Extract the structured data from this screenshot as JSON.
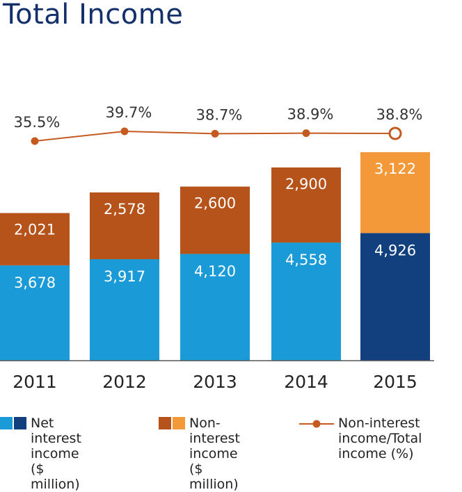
{
  "title": "Total Income",
  "chart_data": {
    "type": "bar",
    "stacked": true,
    "categories": [
      "2011",
      "2012",
      "2013",
      "2014",
      "2015"
    ],
    "series": [
      {
        "name": "Net interest income ($ million)",
        "values": [
          3678,
          3917,
          4120,
          4558,
          4926
        ],
        "color": "#1a9ad7",
        "highlight_color": "#123f7d"
      },
      {
        "name": "Non-interest income ($ million)",
        "values": [
          2021,
          2578,
          2600,
          2900,
          3122
        ],
        "color": "#b6531b",
        "highlight_color": "#f3993a"
      }
    ],
    "bar_labels": {
      "net": [
        "3,678",
        "3,917",
        "4,120",
        "4,558",
        "4,926"
      ],
      "non": [
        "2,021",
        "2,578",
        "2,600",
        "2,900",
        "3,122"
      ]
    },
    "line": {
      "name": "Non-interest income/Total income (%)",
      "values": [
        35.5,
        39.7,
        38.7,
        38.9,
        38.8
      ],
      "labels": [
        "35.5%",
        "39.7%",
        "38.7%",
        "38.9%",
        "38.8%"
      ],
      "color": "#c55a21"
    },
    "highlight_index": 4
  },
  "legend": [
    {
      "label": "Net interest\nincome\n($ million)",
      "colors": [
        "#1a9ad7",
        "#123f7d"
      ]
    },
    {
      "label": "Non-interest\nincome\n($ million)",
      "colors": [
        "#b6531b",
        "#f3993a"
      ]
    },
    {
      "label": "Non-interest\nincome/Total\nincome (%)",
      "colors": [
        "#c55a21"
      ]
    }
  ]
}
